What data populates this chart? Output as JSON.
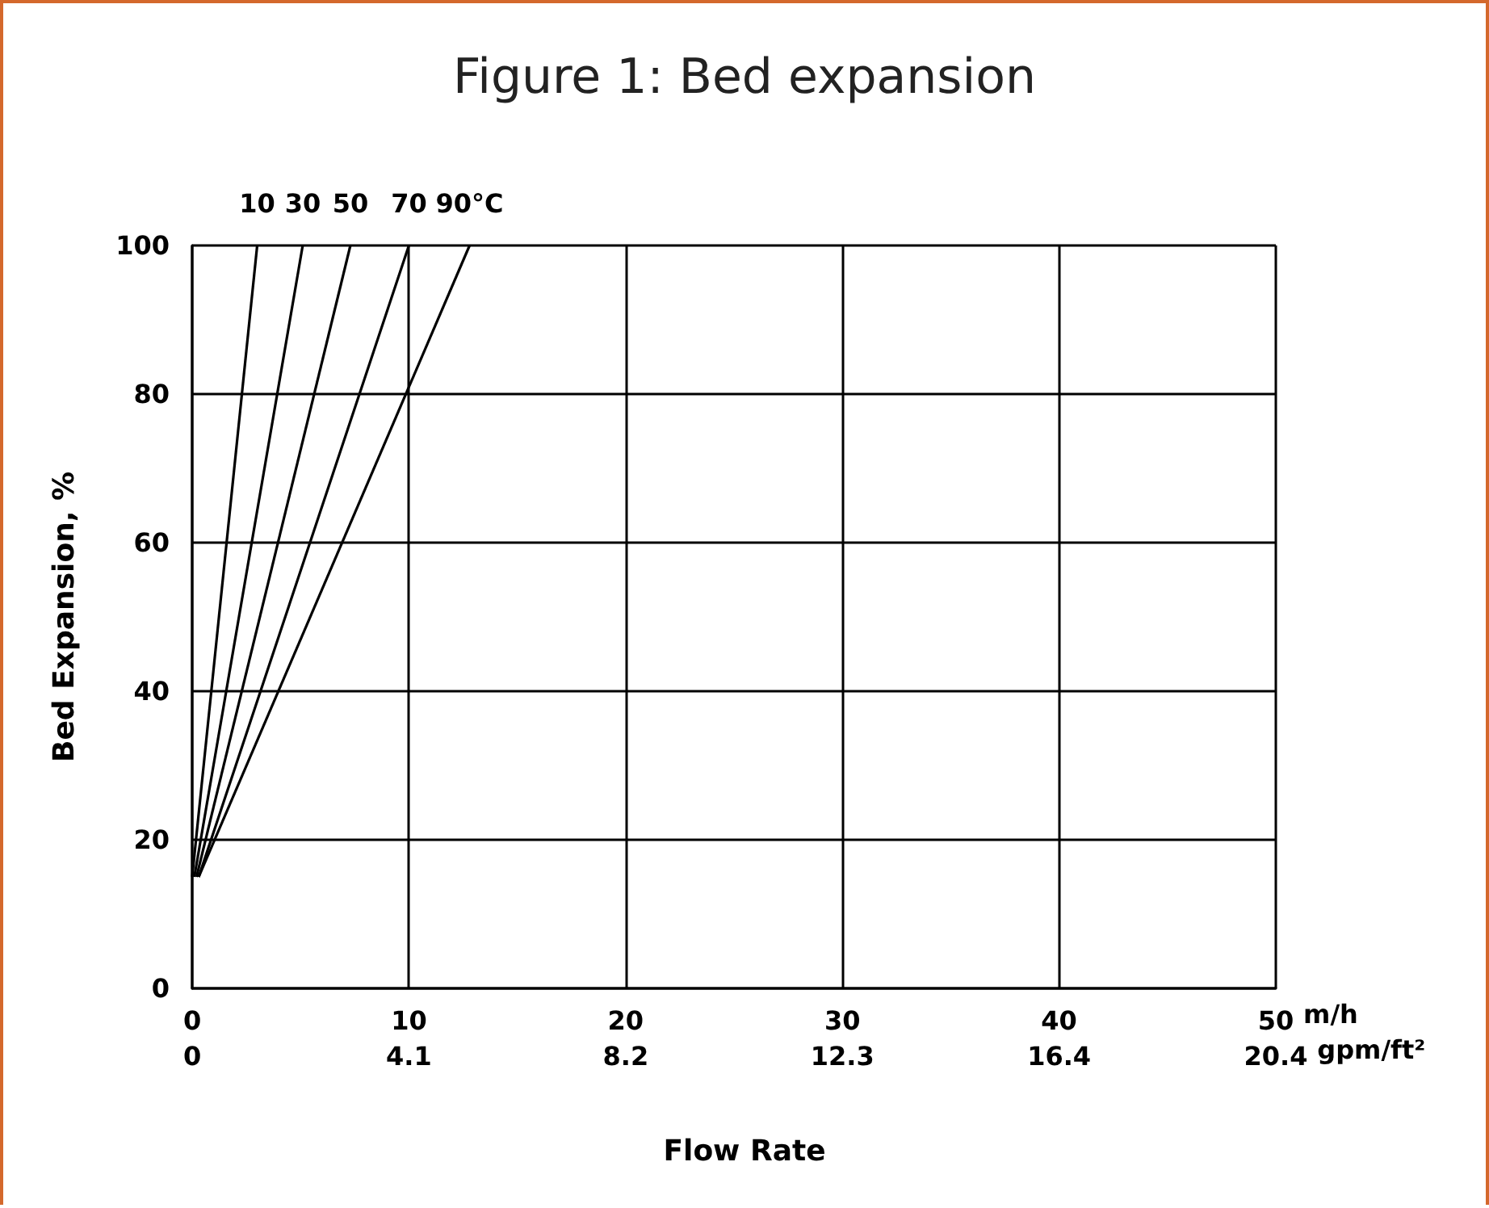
{
  "chart_data": {
    "type": "line",
    "title": "Figure 1: Bed expansion",
    "xlabel": "Flow Rate",
    "ylabel": "Bed Expansion, %",
    "annotations": [
      "m/h",
      "gpm/ft²"
    ],
    "xlim": [
      0,
      50
    ],
    "xticks": [
      0,
      10,
      20,
      30,
      40,
      50
    ],
    "x2lim": [
      0,
      20.45
    ],
    "x2ticks": [
      0,
      {
        "value": 4.09,
        "label": "4.1"
      },
      {
        "value": 8.18,
        "label": "8.2"
      },
      {
        "value": 12.27,
        "label": "12.3"
      },
      {
        "value": 16.36,
        "label": "16.4"
      },
      {
        "value": 20.45,
        "label": "20.4"
      }
    ],
    "ylim": [
      0,
      100
    ],
    "yticks": [
      0,
      20,
      40,
      60,
      80,
      100
    ],
    "grid": true,
    "legend": false,
    "marker": "none",
    "line_style": "solid",
    "series": [
      {
        "name": "10",
        "color": "#000000",
        "x": [
          0,
          3
        ],
        "values": [
          15,
          100
        ]
      },
      {
        "name": "30",
        "color": "#000000",
        "x": [
          0.1,
          5.1
        ],
        "values": [
          15,
          100
        ]
      },
      {
        "name": "50",
        "color": "#000000",
        "x": [
          0.2,
          7.3
        ],
        "values": [
          15,
          100
        ]
      },
      {
        "name": "70",
        "color": "#000000",
        "x": [
          0.3,
          10
        ],
        "values": [
          15,
          100
        ]
      },
      {
        "name": "90°C",
        "color": "#000000",
        "x": [
          0.3,
          12.8
        ],
        "values": [
          15,
          100
        ]
      }
    ]
  }
}
